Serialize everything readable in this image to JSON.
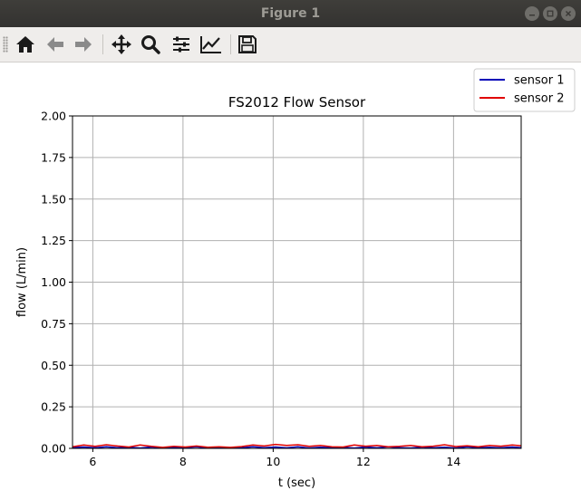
{
  "window": {
    "title": "Figure 1"
  },
  "toolbar": {
    "buttons": [
      {
        "name": "home-icon",
        "tip": "Home"
      },
      {
        "name": "back-arrow-icon",
        "tip": "Back"
      },
      {
        "name": "forward-arrow-icon",
        "tip": "Forward"
      },
      {
        "name": "pan-icon",
        "tip": "Pan"
      },
      {
        "name": "zoom-icon",
        "tip": "Zoom"
      },
      {
        "name": "subplots-config-icon",
        "tip": "Subplots"
      },
      {
        "name": "edit-axes-icon",
        "tip": "Customize"
      },
      {
        "name": "save-icon",
        "tip": "Save"
      }
    ]
  },
  "colors": {
    "sensor1": "#0000b8",
    "sensor2": "#e00000",
    "grid": "#b0b0b0"
  },
  "chart_data": {
    "type": "line",
    "title": "FS2012 Flow Sensor",
    "xlabel": "t (sec)",
    "ylabel": "flow  (L/min)",
    "xlim": [
      5.55,
      15.5
    ],
    "ylim": [
      0,
      2.0
    ],
    "xticks": [
      6,
      8,
      10,
      12,
      14
    ],
    "xtick_labels": [
      "6",
      "8",
      "10",
      "12",
      "14"
    ],
    "yticks": [
      0.0,
      0.25,
      0.5,
      0.75,
      1.0,
      1.25,
      1.5,
      1.75,
      2.0
    ],
    "ytick_labels": [
      "0.00",
      "0.25",
      "0.50",
      "0.75",
      "1.00",
      "1.25",
      "1.50",
      "1.75",
      "2.00"
    ],
    "grid": true,
    "legend_position": "upper-right-outside",
    "series": [
      {
        "name": "sensor 1",
        "x": [
          5.55,
          5.8,
          6.05,
          6.3,
          6.55,
          6.8,
          7.05,
          7.3,
          7.55,
          7.8,
          8.05,
          8.3,
          8.55,
          8.8,
          9.05,
          9.3,
          9.55,
          9.8,
          10.05,
          10.3,
          10.55,
          10.8,
          11.05,
          11.3,
          11.55,
          11.8,
          12.05,
          12.3,
          12.55,
          12.8,
          13.05,
          13.3,
          13.55,
          13.8,
          14.05,
          14.3,
          14.55,
          14.8,
          15.05,
          15.3,
          15.5
        ],
        "y": [
          0.004,
          0.008,
          0.003,
          0.009,
          0.004,
          0.007,
          0.002,
          0.008,
          0.003,
          0.006,
          0.004,
          0.009,
          0.002,
          0.007,
          0.004,
          0.003,
          0.01,
          0.004,
          0.008,
          0.003,
          0.009,
          0.002,
          0.007,
          0.004,
          0.006,
          0.002,
          0.008,
          0.003,
          0.009,
          0.004,
          0.002,
          0.008,
          0.003,
          0.007,
          0.002,
          0.009,
          0.004,
          0.006,
          0.003,
          0.008,
          0.004
        ]
      },
      {
        "name": "sensor 2",
        "x": [
          5.55,
          5.8,
          6.05,
          6.3,
          6.55,
          6.8,
          7.05,
          7.3,
          7.55,
          7.8,
          8.05,
          8.3,
          8.55,
          8.8,
          9.05,
          9.3,
          9.55,
          9.8,
          10.05,
          10.3,
          10.55,
          10.8,
          11.05,
          11.3,
          11.55,
          11.8,
          12.05,
          12.3,
          12.55,
          12.8,
          13.05,
          13.3,
          13.55,
          13.8,
          14.05,
          14.3,
          14.55,
          14.8,
          15.05,
          15.3,
          15.5
        ],
        "y": [
          0.01,
          0.02,
          0.012,
          0.022,
          0.014,
          0.008,
          0.02,
          0.012,
          0.006,
          0.012,
          0.008,
          0.014,
          0.007,
          0.01,
          0.006,
          0.011,
          0.02,
          0.014,
          0.024,
          0.018,
          0.022,
          0.012,
          0.018,
          0.01,
          0.008,
          0.02,
          0.013,
          0.018,
          0.009,
          0.012,
          0.018,
          0.01,
          0.013,
          0.022,
          0.011,
          0.016,
          0.01,
          0.018,
          0.013,
          0.02,
          0.016
        ]
      }
    ]
  }
}
